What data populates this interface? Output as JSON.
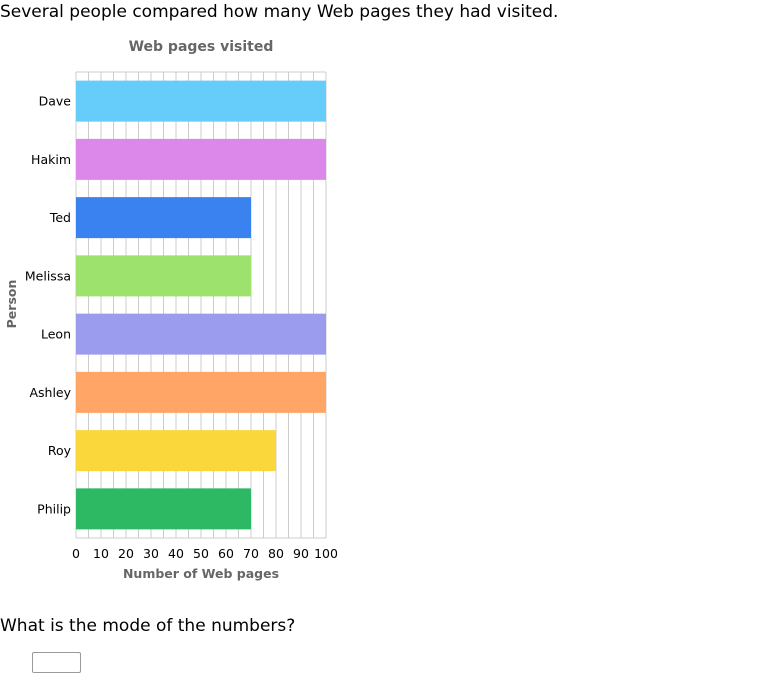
{
  "intro_text": "Several people compared how many Web pages they had visited.",
  "question_text": "What is the mode of the numbers?",
  "answer": {
    "value": ""
  },
  "chart_data": {
    "type": "bar",
    "orientation": "horizontal",
    "title": "Web pages visited",
    "xlabel": "Number of Web pages",
    "ylabel": "Person",
    "categories": [
      "Dave",
      "Hakim",
      "Ted",
      "Melissa",
      "Leon",
      "Ashley",
      "Roy",
      "Philip"
    ],
    "values": [
      100,
      100,
      70,
      70,
      100,
      100,
      80,
      70
    ],
    "colors": [
      "#66ccfa",
      "#dc88ea",
      "#3a82ef",
      "#9ce26c",
      "#9c9cef",
      "#ffa566",
      "#fad73a",
      "#2db864"
    ],
    "xlim": [
      0,
      100
    ],
    "xticks": [
      0,
      10,
      20,
      30,
      40,
      50,
      60,
      70,
      80,
      90,
      100
    ],
    "grid": true,
    "legend": "none"
  }
}
